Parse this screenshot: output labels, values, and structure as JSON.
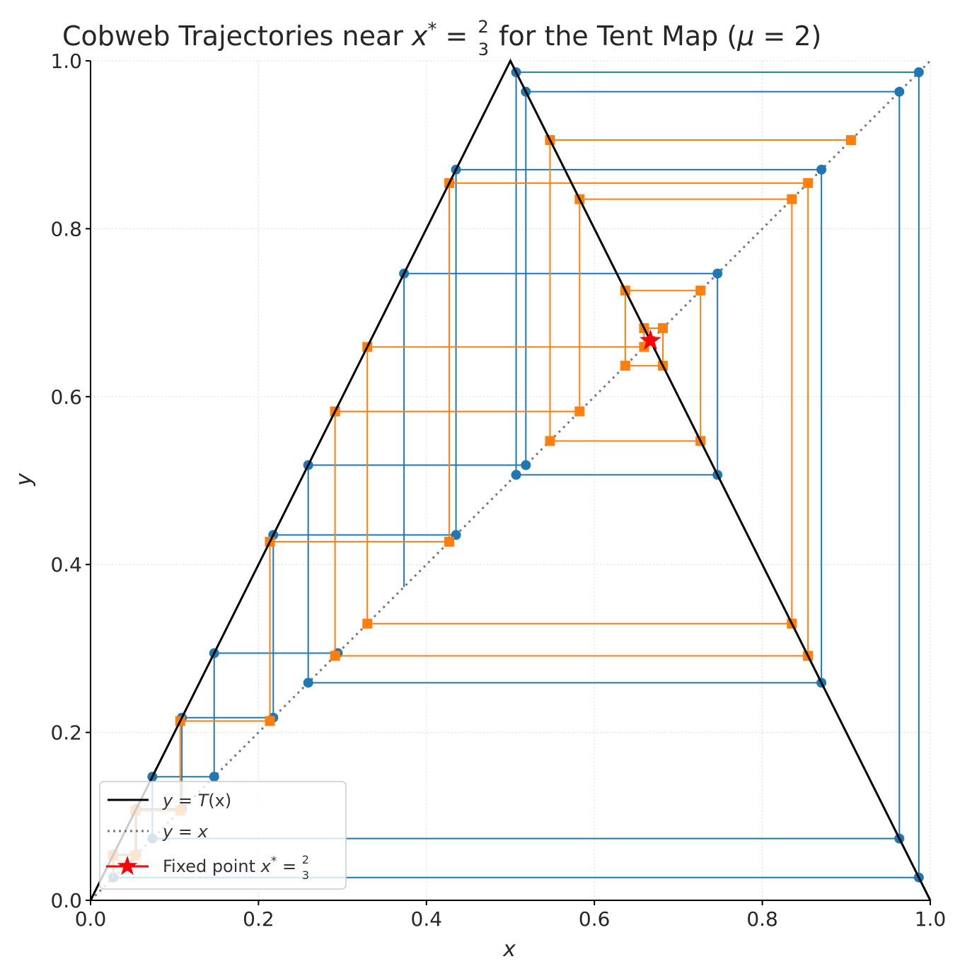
{
  "chart_data": {
    "type": "line",
    "title": {
      "prefix": "Cobweb Trajectories near ",
      "math_var": "x",
      "math_sup": "*",
      "math_eq": " = ",
      "frac_num": "2",
      "frac_den": "3",
      "suffix": " for the Tent Map (",
      "param_var": "μ",
      "param_eq": " = 2)"
    },
    "xlabel": "x",
    "ylabel": "y",
    "xlim": [
      0,
      1
    ],
    "ylim": [
      0,
      1
    ],
    "xticks": [
      "0.0",
      "0.2",
      "0.4",
      "0.6",
      "0.8",
      "1.0"
    ],
    "yticks": [
      "0.0",
      "0.2",
      "0.4",
      "0.6",
      "0.8",
      "1.0"
    ],
    "tick_values": [
      0,
      0.2,
      0.4,
      0.6,
      0.8,
      1.0
    ],
    "grid": true,
    "map_mu": 2,
    "fixed_point": {
      "x": 0.6667,
      "y": 0.6667
    },
    "legend": {
      "position": "bottom-left",
      "entries": [
        {
          "var": "y",
          "eq": " = ",
          "fn": "T",
          "arg": "(x)",
          "style": "solid-black"
        },
        {
          "var": "y",
          "eq": " = ",
          "rhs": "x",
          "style": "dotted-gray"
        },
        {
          "text": "Fixed point ",
          "var": "x",
          "sup": "*",
          "eq": " = ",
          "frac_num": "2",
          "frac_den": "3",
          "style": "red-star"
        }
      ]
    },
    "series": [
      {
        "marker": "circle",
        "color": "#1f77b4",
        "x0": 0.3733,
        "steps": 15
      },
      {
        "marker": "square",
        "color": "#ff7f0e",
        "x0": 0.0267,
        "steps": 15
      }
    ],
    "colors": {
      "tent": "#000000",
      "identity": "#777777",
      "fixed_point": "#ff0000",
      "series_blue": "#1f77b4",
      "series_orange": "#ff7f0e"
    }
  }
}
